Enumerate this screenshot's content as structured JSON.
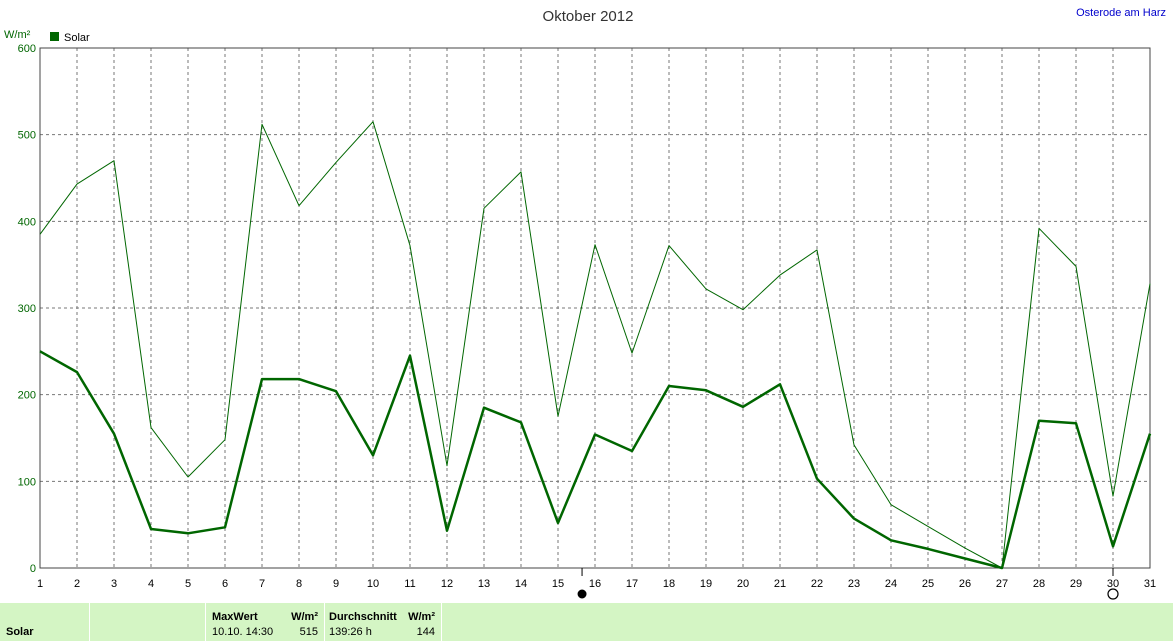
{
  "chart_data": {
    "type": "line",
    "title": "Oktober 2012",
    "location": "Osterode am Harz",
    "ylabel": "W/m²",
    "ylim": [
      0,
      600
    ],
    "yticks": [
      0,
      100,
      200,
      300,
      400,
      500,
      600
    ],
    "x": [
      1,
      2,
      3,
      4,
      5,
      6,
      7,
      8,
      9,
      10,
      11,
      12,
      13,
      14,
      15,
      16,
      17,
      18,
      19,
      20,
      21,
      22,
      23,
      24,
      25,
      26,
      27,
      28,
      29,
      30,
      31
    ],
    "legend": "Solar",
    "legend_position": "top-left",
    "grid": true,
    "series": [
      {
        "role": "max",
        "color": "#006600",
        "values": [
          385,
          443,
          470,
          162,
          105,
          148,
          512,
          418,
          468,
          515,
          372,
          118,
          415,
          457,
          175,
          373,
          248,
          372,
          322,
          298,
          338,
          367,
          142,
          73,
          48,
          23,
          0,
          392,
          348,
          83,
          328
        ]
      },
      {
        "role": "average",
        "color": "#006600",
        "values": [
          250,
          226,
          155,
          45,
          40,
          47,
          218,
          218,
          204,
          130,
          245,
          43,
          185,
          168,
          52,
          154,
          135,
          210,
          205,
          186,
          212,
          103,
          57,
          32,
          22,
          11,
          0,
          170,
          167,
          25,
          155
        ]
      }
    ],
    "markers": [
      {
        "x": 15.65,
        "symbol": "new-moon"
      },
      {
        "x": 30,
        "symbol": "full-moon"
      }
    ]
  },
  "footer": {
    "series_label": "Solar",
    "max_header": "MaxWert",
    "max_unit": "W/m²",
    "max_time": "10.10.  14:30",
    "max_value": "515",
    "avg_header": "Durchschnitt",
    "avg_unit": "W/m²",
    "avg_duration": "139:26 h",
    "avg_value": "144"
  }
}
